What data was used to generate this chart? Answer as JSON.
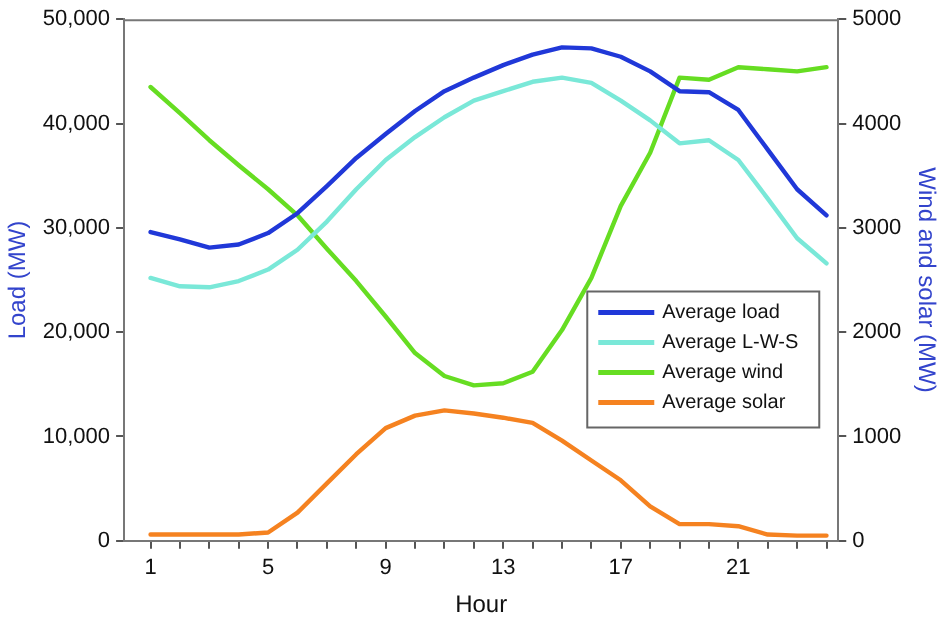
{
  "chart_data": {
    "type": "line",
    "xlabel": "Hour",
    "ylabel": "Load (MW)",
    "y2label": "Wind and solar (MW)",
    "x": [
      1,
      2,
      3,
      4,
      5,
      6,
      7,
      8,
      9,
      10,
      11,
      12,
      13,
      14,
      15,
      16,
      17,
      18,
      19,
      20,
      21,
      22,
      23,
      24
    ],
    "series": [
      {
        "name": "Average load",
        "color": "#2038d8",
        "values": [
          29600,
          28900,
          28100,
          28400,
          29500,
          31400,
          34000,
          36700,
          39000,
          41200,
          43100,
          44400,
          45600,
          46600,
          47300,
          47200,
          46400,
          45000,
          43100,
          43000,
          41300,
          37500,
          33700,
          31200
        ]
      },
      {
        "name": "Average L-W-S",
        "color": "#7ae8d8",
        "values": [
          25200,
          24400,
          24300,
          24900,
          26000,
          27900,
          30600,
          33700,
          36500,
          38700,
          40600,
          42200,
          43100,
          44000,
          44400,
          43900,
          42200,
          40300,
          38100,
          38400,
          36500,
          32800,
          29000,
          26600
        ]
      },
      {
        "name": "Average wind",
        "color": "#66dd22",
        "axis": "y2",
        "values": [
          4350,
          4100,
          3840,
          3600,
          3370,
          3120,
          2800,
          2490,
          2150,
          1800,
          1580,
          1490,
          1510,
          1620,
          2020,
          2520,
          3210,
          3720,
          4440,
          4420,
          4540,
          4520,
          4500,
          4540
        ]
      },
      {
        "name": "Average solar",
        "color": "#f58220",
        "axis": "y2",
        "values": [
          60,
          60,
          60,
          60,
          80,
          270,
          550,
          830,
          1080,
          1200,
          1250,
          1220,
          1180,
          1130,
          960,
          770,
          580,
          330,
          160,
          160,
          140,
          60,
          50,
          50
        ]
      }
    ],
    "xlim": [
      0.1,
      24.4
    ],
    "xticks": [
      1,
      {
        "value": 2,
        "label": null
      },
      {
        "value": 3,
        "label": null
      },
      {
        "value": 4,
        "label": null
      },
      5,
      {
        "value": 6,
        "label": null
      },
      {
        "value": 7,
        "label": null
      },
      {
        "value": 8,
        "label": null
      },
      9,
      {
        "value": 10,
        "label": null
      },
      {
        "value": 11,
        "label": null
      },
      {
        "value": 12,
        "label": null
      },
      13,
      {
        "value": 14,
        "label": null
      },
      {
        "value": 15,
        "label": null
      },
      {
        "value": 16,
        "label": null
      },
      17,
      {
        "value": 18,
        "label": null
      },
      {
        "value": 19,
        "label": null
      },
      {
        "value": 20,
        "label": null
      },
      21,
      {
        "value": 22,
        "label": null
      },
      {
        "value": 23,
        "label": null
      },
      {
        "value": 24,
        "label": null
      }
    ],
    "ylim": [
      0,
      50000
    ],
    "yticks": [
      {
        "value": 0,
        "label": "0"
      },
      {
        "value": 10000,
        "label": "10,000"
      },
      {
        "value": 20000,
        "label": "20,000"
      },
      {
        "value": 30000,
        "label": "30,000"
      },
      {
        "value": 40000,
        "label": "40,000"
      },
      {
        "value": 50000,
        "label": "50,000"
      }
    ],
    "y2lim": [
      0,
      5000
    ],
    "y2ticks": [
      0,
      1000,
      2000,
      3000,
      4000,
      5000
    ],
    "grid": false,
    "legend": "right",
    "marker": "none",
    "line_style": "solid"
  }
}
